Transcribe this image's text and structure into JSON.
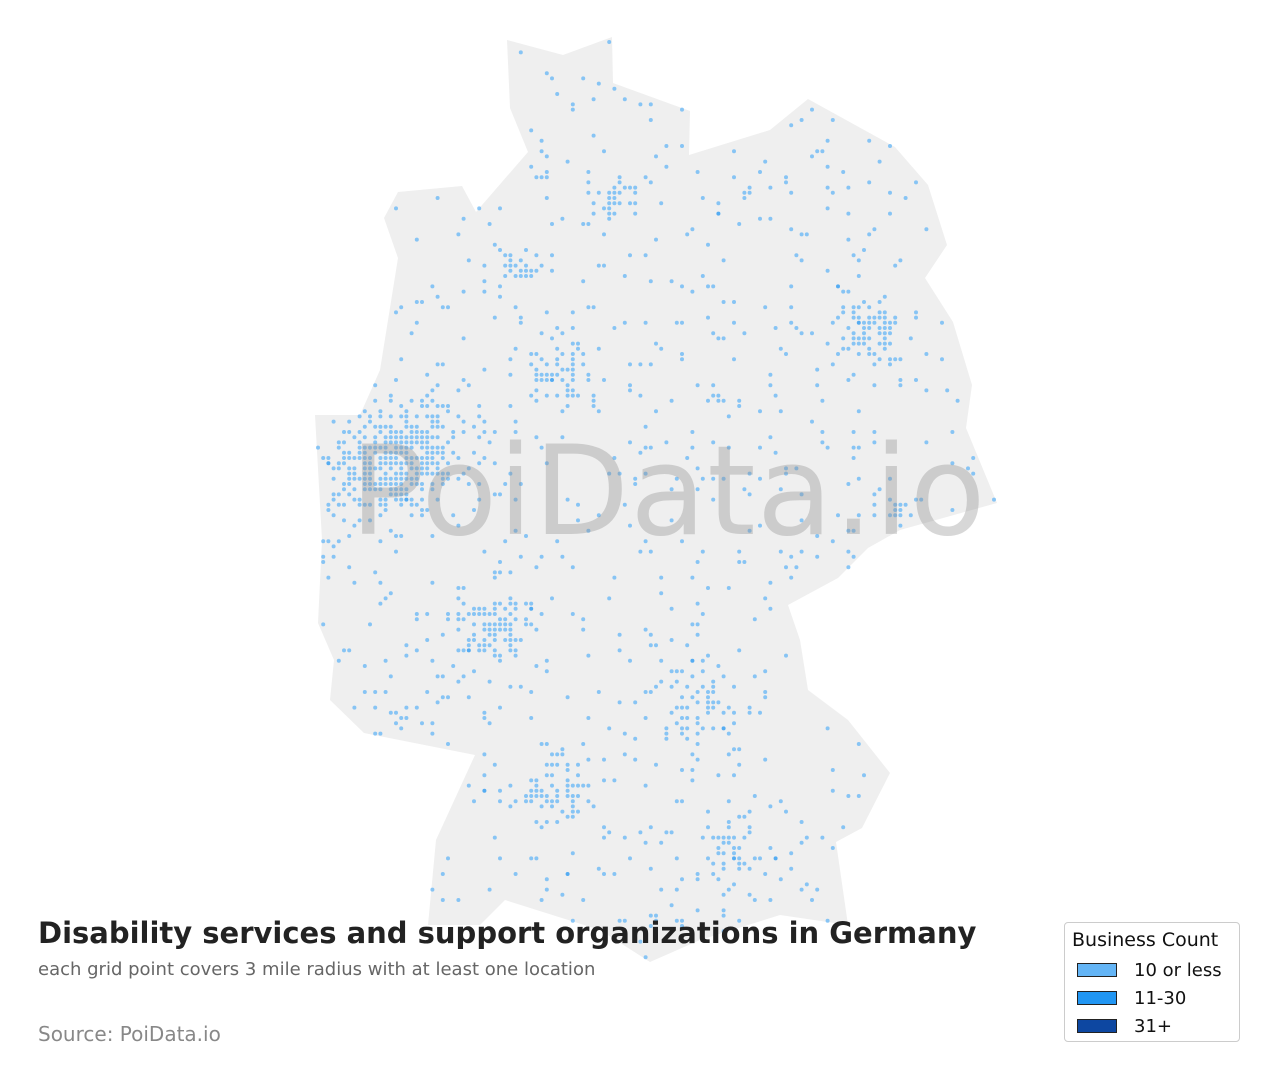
{
  "title": "Disability services and support organizations in Germany",
  "subtitle": "each grid point covers 3 mile radius with at least one location",
  "source": "Source: PoiData.io",
  "watermark": "PoiData.io",
  "map": {
    "region": "Germany",
    "land_color": "#efefef",
    "point_color": "#64b5f6"
  },
  "legend": {
    "title": "Business Count",
    "items": [
      {
        "label": "10 or less",
        "color": "#64b5f6"
      },
      {
        "label": "11-30",
        "color": "#2196f3"
      },
      {
        "label": "31+",
        "color": "#0d47a1"
      }
    ]
  }
}
